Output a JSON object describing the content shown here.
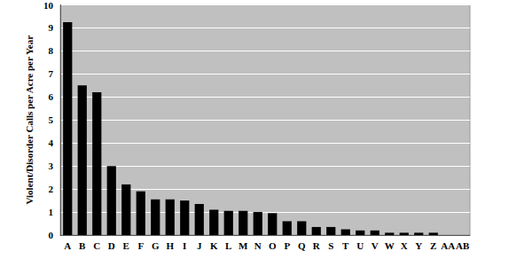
{
  "chart_data": {
    "type": "bar",
    "ylabel": "Violent/Disorder Calls per Acre per Year",
    "categories": [
      "A",
      "B",
      "C",
      "D",
      "E",
      "F",
      "G",
      "H",
      "I",
      "J",
      "K",
      "L",
      "M",
      "N",
      "O",
      "P",
      "Q",
      "R",
      "S",
      "T",
      "U",
      "V",
      "W",
      "X",
      "Y",
      "Z",
      "AA",
      "AB"
    ],
    "values": [
      9.25,
      6.5,
      6.2,
      3.0,
      2.2,
      1.9,
      1.55,
      1.55,
      1.5,
      1.35,
      1.1,
      1.05,
      1.05,
      1.0,
      0.95,
      0.6,
      0.6,
      0.35,
      0.35,
      0.25,
      0.2,
      0.2,
      0.1,
      0.1,
      0.1,
      0.1,
      0,
      0
    ],
    "color": "#000000",
    "ylim": [
      0,
      10
    ],
    "yticks": [
      0,
      1,
      2,
      3,
      4,
      5,
      6,
      7,
      8,
      9,
      10
    ],
    "grid": true
  }
}
